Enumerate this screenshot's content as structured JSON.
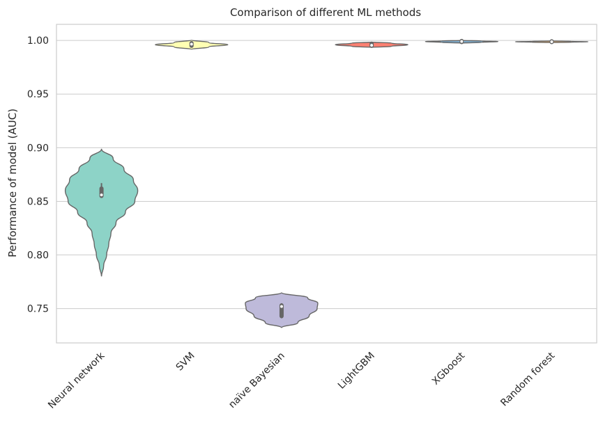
{
  "chart_data": {
    "type": "violin",
    "title": "Comparison of different ML methods",
    "xlabel": "",
    "ylabel": "Performance of model (AUC)",
    "ylim": [
      0.718,
      1.015
    ],
    "yticks": [
      0.75,
      0.8,
      0.85,
      0.9,
      0.95,
      1.0
    ],
    "ytick_labels": [
      "0.75",
      "0.80",
      "0.85",
      "0.90",
      "0.95",
      "1.00"
    ],
    "grid": "horizontal",
    "categories": [
      "Neural network",
      "SVM",
      "naive Bayesian",
      "LightGBM",
      "XGboost",
      "Random forest"
    ],
    "category_labels": [
      "Neural network",
      "SVM",
      "naïve Bayesian",
      "LightGBM",
      "XGboost",
      "Random forest"
    ],
    "colors": [
      "#8dd3c7",
      "#ffffb3",
      "#bebada",
      "#fb8072",
      "#80b1d3",
      "#fdb462"
    ],
    "series": [
      {
        "name": "Neural network",
        "min": 0.78,
        "q1": 0.855,
        "median": 0.856,
        "q3": 0.862,
        "max": 0.899,
        "whisker_low": 0.854,
        "whisker_high": 0.867,
        "density": [
          [
            0.78,
            0.0
          ],
          [
            0.79,
            0.06
          ],
          [
            0.8,
            0.14
          ],
          [
            0.81,
            0.2
          ],
          [
            0.82,
            0.26
          ],
          [
            0.83,
            0.4
          ],
          [
            0.84,
            0.66
          ],
          [
            0.85,
            0.92
          ],
          [
            0.86,
            1.0
          ],
          [
            0.87,
            0.88
          ],
          [
            0.88,
            0.62
          ],
          [
            0.89,
            0.32
          ],
          [
            0.899,
            0.0
          ]
        ]
      },
      {
        "name": "SVM",
        "min": 0.9915,
        "q1": 0.995,
        "median": 0.9965,
        "q3": 0.9975,
        "max": 1.0005,
        "whisker_low": 0.9945,
        "whisker_high": 0.998,
        "density": [
          [
            0.9915,
            0.0
          ],
          [
            0.994,
            0.48
          ],
          [
            0.996,
            1.0
          ],
          [
            0.998,
            0.48
          ],
          [
            1.0005,
            0.0
          ]
        ]
      },
      {
        "name": "naive Bayesian",
        "min": 0.732,
        "q1": 0.743,
        "median": 0.752,
        "q3": 0.753,
        "max": 0.765,
        "whisker_low": 0.741,
        "whisker_high": 0.755,
        "density": [
          [
            0.732,
            0.0
          ],
          [
            0.737,
            0.45
          ],
          [
            0.743,
            0.76
          ],
          [
            0.75,
            0.98
          ],
          [
            0.755,
            1.0
          ],
          [
            0.76,
            0.72
          ],
          [
            0.765,
            0.0
          ]
        ]
      },
      {
        "name": "LightGBM",
        "min": 0.9935,
        "q1": 0.995,
        "median": 0.9955,
        "q3": 0.997,
        "max": 0.9985,
        "whisker_low": 0.9945,
        "whisker_high": 0.9975,
        "density": [
          [
            0.9935,
            0.0
          ],
          [
            0.9945,
            0.55
          ],
          [
            0.996,
            1.0
          ],
          [
            0.9975,
            0.55
          ],
          [
            0.9985,
            0.0
          ]
        ]
      },
      {
        "name": "XGboost",
        "min": 0.9975,
        "q1": 0.9985,
        "median": 0.999,
        "q3": 0.9995,
        "max": 1.0,
        "whisker_low": 0.998,
        "whisker_high": 1.0,
        "density": [
          [
            0.9975,
            0.0
          ],
          [
            0.9982,
            0.55
          ],
          [
            0.999,
            1.0
          ],
          [
            0.9995,
            0.55
          ],
          [
            1.0,
            0.0
          ]
        ]
      },
      {
        "name": "Random forest",
        "min": 0.998,
        "q1": 0.9985,
        "median": 0.9988,
        "q3": 0.9992,
        "max": 0.9995,
        "whisker_low": 0.9983,
        "whisker_high": 0.9994,
        "density": [
          [
            0.998,
            0.0
          ],
          [
            0.9984,
            0.55
          ],
          [
            0.9988,
            1.0
          ],
          [
            0.9991,
            0.55
          ],
          [
            0.9995,
            0.0
          ]
        ]
      }
    ]
  }
}
